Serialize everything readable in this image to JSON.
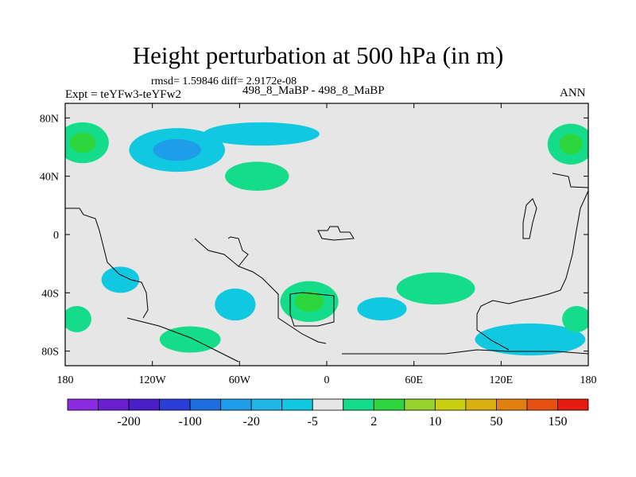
{
  "chart_data": {
    "type": "heatmap",
    "title": "Height perturbation at 500 hPa (in m)",
    "stats": "rmsd= 1.59846 diff= 2.9172e-08",
    "left_label": "Expt = teYFw3-teYFw2",
    "center_label": "498_8_MaBP - 498_8_MaBP",
    "right_label": "ANN",
    "x_range": [
      -180,
      180
    ],
    "y_range": [
      -90,
      90
    ],
    "x_ticks": [
      {
        "value": -180,
        "label": "180"
      },
      {
        "value": -120,
        "label": "120W"
      },
      {
        "value": -60,
        "label": "60W"
      },
      {
        "value": 0,
        "label": "0"
      },
      {
        "value": 60,
        "label": "60E"
      },
      {
        "value": 120,
        "label": "120E"
      },
      {
        "value": 180,
        "label": "180"
      }
    ],
    "y_ticks": [
      {
        "value": 80,
        "label": "80N"
      },
      {
        "value": 40,
        "label": "40N"
      },
      {
        "value": 0,
        "label": "0"
      },
      {
        "value": -40,
        "label": "40S"
      },
      {
        "value": -80,
        "label": "80S"
      }
    ],
    "colorbar": {
      "colors": [
        "#8a2be2",
        "#6a1fd0",
        "#4b1fc8",
        "#2b3cd8",
        "#1e6ee0",
        "#1e9ee8",
        "#22b6e6",
        "#10c8e0",
        "#e6e6e6",
        "#14dc8a",
        "#2cd63c",
        "#98d22c",
        "#c8d010",
        "#d8b010",
        "#e08010",
        "#e65010",
        "#e41c10"
      ],
      "labels": [
        {
          "after_index": 1,
          "text": "-200"
        },
        {
          "after_index": 3,
          "text": "-100"
        },
        {
          "after_index": 5,
          "text": "-20"
        },
        {
          "after_index": 7,
          "text": "-5"
        },
        {
          "after_index": 9,
          "text": "2"
        },
        {
          "after_index": 11,
          "text": "10"
        },
        {
          "after_index": 13,
          "text": "50"
        },
        {
          "after_index": 15,
          "text": "150"
        }
      ]
    },
    "anomaly_regions": [
      {
        "name": "west-pacific-north-positive",
        "lon": -168,
        "lat": 63,
        "rlon": 18,
        "rlat": 14,
        "color": "#14dc8a",
        "core_color": "#2cd63c"
      },
      {
        "name": "north-pacific-negative",
        "lon": -103,
        "lat": 58,
        "rlon": 33,
        "rlat": 15,
        "color": "#10c8e0",
        "core_color": "#1e9ee8"
      },
      {
        "name": "north-america-negative-band",
        "lon": -45,
        "lat": 69,
        "rlon": 40,
        "rlat": 8,
        "color": "#10c8e0",
        "core_color": ""
      },
      {
        "name": "north-atlantic-positive",
        "lon": -48,
        "lat": 40,
        "rlon": 22,
        "rlat": 10,
        "color": "#14dc8a",
        "core_color": ""
      },
      {
        "name": "east-asia-north-positive",
        "lon": 168,
        "lat": 62,
        "rlon": 16,
        "rlat": 14,
        "color": "#14dc8a",
        "core_color": "#2cd63c"
      },
      {
        "name": "south-pacific-negative",
        "lon": -142,
        "lat": -31,
        "rlon": 13,
        "rlat": 9,
        "color": "#10c8e0",
        "core_color": ""
      },
      {
        "name": "south-america-negative",
        "lon": -63,
        "lat": -48,
        "rlon": 14,
        "rlat": 11,
        "color": "#10c8e0",
        "core_color": ""
      },
      {
        "name": "south-atlantic-positive",
        "lon": -12,
        "lat": -46,
        "rlon": 20,
        "rlat": 14,
        "color": "#14dc8a",
        "core_color": "#2cd63c"
      },
      {
        "name": "indian-ocean-negative",
        "lon": 38,
        "lat": -51,
        "rlon": 17,
        "rlat": 8,
        "color": "#10c8e0",
        "core_color": ""
      },
      {
        "name": "indian-ocean-positive",
        "lon": 75,
        "lat": -37,
        "rlon": 27,
        "rlat": 11,
        "color": "#14dc8a",
        "core_color": ""
      },
      {
        "name": "southern-ocean-negative",
        "lon": 140,
        "lat": -72,
        "rlon": 38,
        "rlat": 11,
        "color": "#10c8e0",
        "core_color": ""
      },
      {
        "name": "south-pacific-far-west-positive",
        "lon": -172,
        "lat": -58,
        "rlon": 10,
        "rlat": 9,
        "color": "#14dc8a",
        "core_color": ""
      },
      {
        "name": "south-pacific-far-east-positive",
        "lon": 172,
        "lat": -58,
        "rlon": 10,
        "rlat": 9,
        "color": "#14dc8a",
        "core_color": ""
      },
      {
        "name": "southern-ocean-positive",
        "lon": -94,
        "lat": -72,
        "rlon": 21,
        "rlat": 9,
        "color": "#14dc8a",
        "core_color": ""
      }
    ]
  }
}
